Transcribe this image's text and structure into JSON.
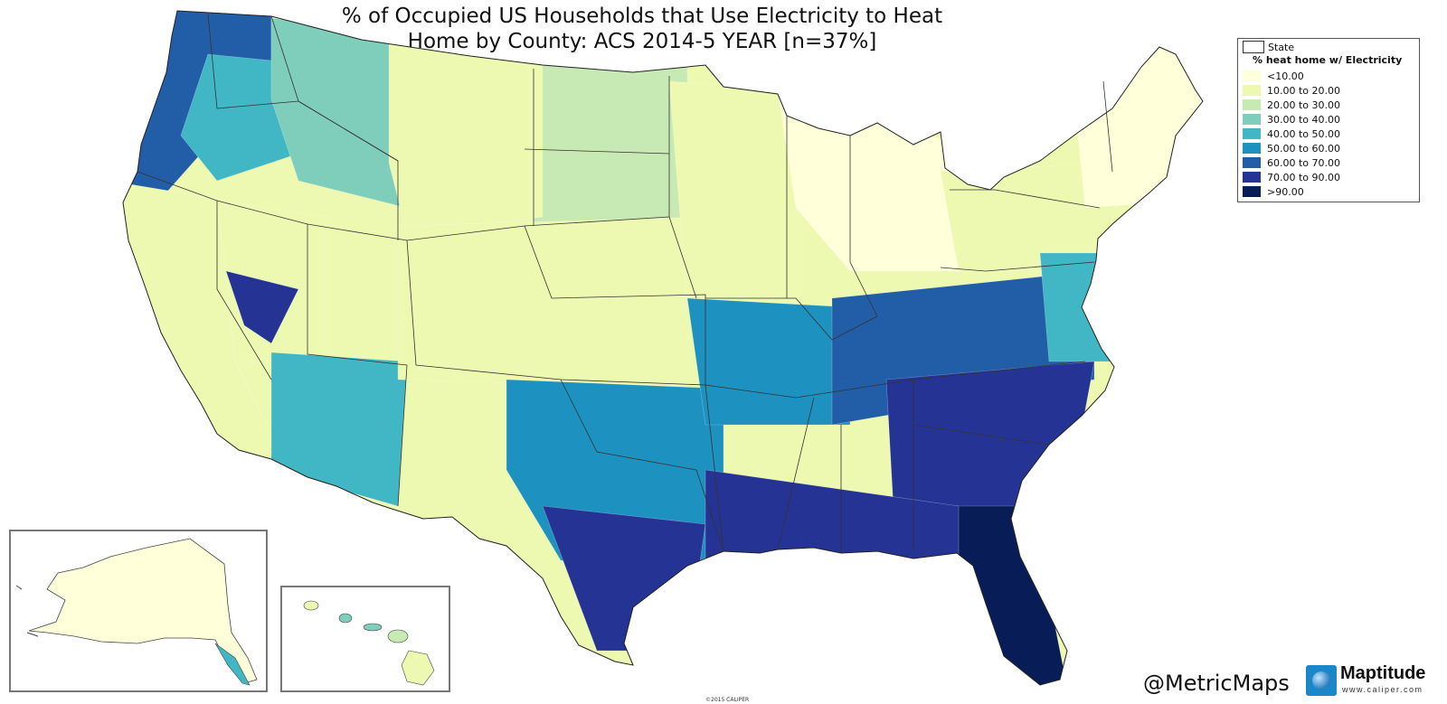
{
  "title": {
    "line1": "% of Occupied US Households that Use Electricity to Heat",
    "line2": "Home by County: ACS 2014-5 YEAR [n=37%]"
  },
  "legend": {
    "state_label": "State",
    "heading": "% heat home w/ Electricity",
    "classes": [
      {
        "label": "<10.00",
        "color": "#ffffd9"
      },
      {
        "label": "10.00 to 20.00",
        "color": "#edf8b1"
      },
      {
        "label": "20.00 to 30.00",
        "color": "#c7e9b4"
      },
      {
        "label": "30.00 to 40.00",
        "color": "#7fcdbb"
      },
      {
        "label": "40.00 to 50.00",
        "color": "#41b6c4"
      },
      {
        "label": "50.00 to 60.00",
        "color": "#1d91c0"
      },
      {
        "label": "60.00 to 70.00",
        "color": "#225ea8"
      },
      {
        "label": "70.00 to 90.00",
        "color": "#253494"
      },
      {
        "label": ">90.00",
        "color": "#081d58"
      }
    ]
  },
  "insets": {
    "alaska": "Alaska",
    "hawaii": "Hawaii"
  },
  "credits": {
    "handle": "@MetricMaps",
    "logo_name": "Maptitude",
    "logo_url": "www.caliper.com",
    "copyright": "©2015 CALIPER"
  },
  "regions": [
    {
      "name": "Pacific Northwest coast",
      "class": 6
    },
    {
      "name": "Washington interior",
      "class": 4
    },
    {
      "name": "Idaho / Montana west",
      "class": 3
    },
    {
      "name": "Northern Plains",
      "class": 2
    },
    {
      "name": "Montana / Wyoming",
      "class": 1
    },
    {
      "name": "Great Basin",
      "class": 1
    },
    {
      "name": "California",
      "class": 1
    },
    {
      "name": "Arizona",
      "class": 4
    },
    {
      "name": "Southern Nevada",
      "class": 7
    },
    {
      "name": "Colorado / Kansas",
      "class": 1
    },
    {
      "name": "Upper Midwest",
      "class": 1
    },
    {
      "name": "Michigan / Wisconsin",
      "class": 0
    },
    {
      "name": "Texas",
      "class": 5
    },
    {
      "name": "South Texas",
      "class": 7
    },
    {
      "name": "Ozarks / Mid-South",
      "class": 5
    },
    {
      "name": "Tennessee / Kentucky",
      "class": 6
    },
    {
      "name": "Carolinas / Georgia",
      "class": 7
    },
    {
      "name": "Florida",
      "class": 8
    },
    {
      "name": "Gulf Coast",
      "class": 7
    },
    {
      "name": "Northeast",
      "class": 1
    },
    {
      "name": "New England",
      "class": 0
    },
    {
      "name": "Mid-Atlantic",
      "class": 4
    },
    {
      "name": "Alaska",
      "class": 0
    },
    {
      "name": "Hawaii",
      "class": 2
    }
  ]
}
